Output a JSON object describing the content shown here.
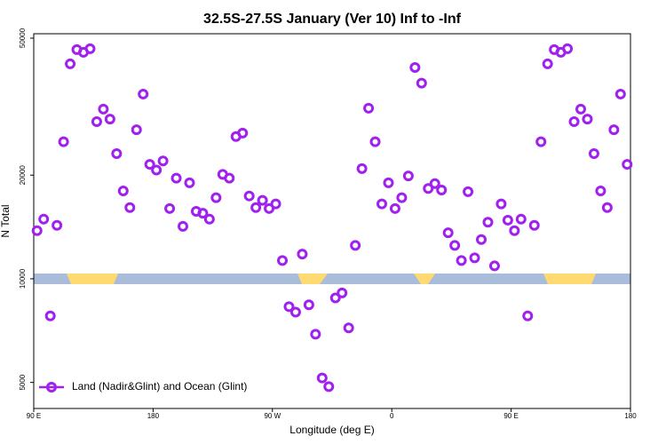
{
  "chart_data": {
    "type": "scatter",
    "title": "32.5S-27.5S January (Ver 10)   Inf to -Inf",
    "x_label": "Longitude (deg E)",
    "y_label": "N Total",
    "log_y": true,
    "legend": "lower left",
    "xlim": [
      90,
      540
    ],
    "ylim": [
      4200,
      51500
    ],
    "xticks": [
      {
        "value": 90,
        "label": "90 E"
      },
      180,
      {
        "value": 270,
        "label": "90 W"
      },
      {
        "value": 360,
        "label": "0"
      },
      {
        "value": 450,
        "label": "90 E"
      },
      {
        "value": 540,
        "label": "180"
      }
    ],
    "yticks": [
      5000,
      10000,
      20000,
      50000
    ],
    "series": [
      {
        "name": "Land (Nadir&Glint) and Ocean (Glint)",
        "color": "#a020f0",
        "x": [
          92.5,
          97.5,
          102.5,
          107.5,
          112.5,
          117.5,
          122.5,
          127.5,
          132.5,
          137.5,
          142.5,
          147.5,
          152.5,
          157.5,
          162.5,
          167.5,
          172.5,
          177.5,
          182.5,
          187.5,
          192.5,
          197.5,
          202.5,
          207.5,
          212.5,
          217.5,
          222.5,
          227.5,
          232.5,
          237.5,
          242.5,
          247.5,
          252.5,
          257.5,
          262.5,
          267.5,
          272.5,
          277.5,
          282.5,
          287.5,
          292.5,
          297.5,
          302.5,
          307.5,
          312.5,
          317.5,
          322.5,
          327.5,
          332.5,
          337.5,
          342.5,
          347.5,
          352.5,
          357.5,
          362.5,
          367.5,
          372.5,
          377.5,
          382.5,
          387.5,
          392.5,
          397.5,
          402.5,
          407.5,
          412.5,
          417.5,
          422.5,
          427.5,
          432.5,
          437.5,
          442.5,
          447.5,
          452.5,
          457.5,
          462.5,
          467.5,
          472.5,
          477.5,
          482.5,
          487.5,
          492.5,
          497.5,
          502.5,
          507.5,
          512.5,
          517.5,
          522.5,
          527.5,
          532.5,
          537.5
        ],
        "values": [
          13800,
          14900,
          7800,
          14300,
          25000,
          42100,
          46300,
          45500,
          46600,
          28600,
          31100,
          29100,
          23100,
          18000,
          16100,
          27100,
          34400,
          21500,
          20700,
          22000,
          16000,
          19600,
          14200,
          19000,
          15700,
          15500,
          14900,
          17200,
          20100,
          19600,
          25900,
          26500,
          17400,
          16100,
          16900,
          16000,
          16500,
          11300,
          8300,
          8000,
          11800,
          8400,
          6900,
          5150,
          4860,
          8800,
          9100,
          7200,
          12500,
          20900,
          31300,
          25000,
          16500,
          19000,
          16000,
          17200,
          19900,
          41100,
          37000,
          18300,
          18900,
          18100,
          13600,
          12500,
          11300,
          17900,
          11500,
          13000,
          14600,
          10900,
          16500,
          14800,
          13800,
          14900,
          7800,
          14300,
          25000,
          42100,
          46300,
          45500,
          46600,
          28600,
          31100,
          29100,
          23100,
          18000,
          16100,
          27100,
          34400,
          21500
        ]
      }
    ]
  }
}
